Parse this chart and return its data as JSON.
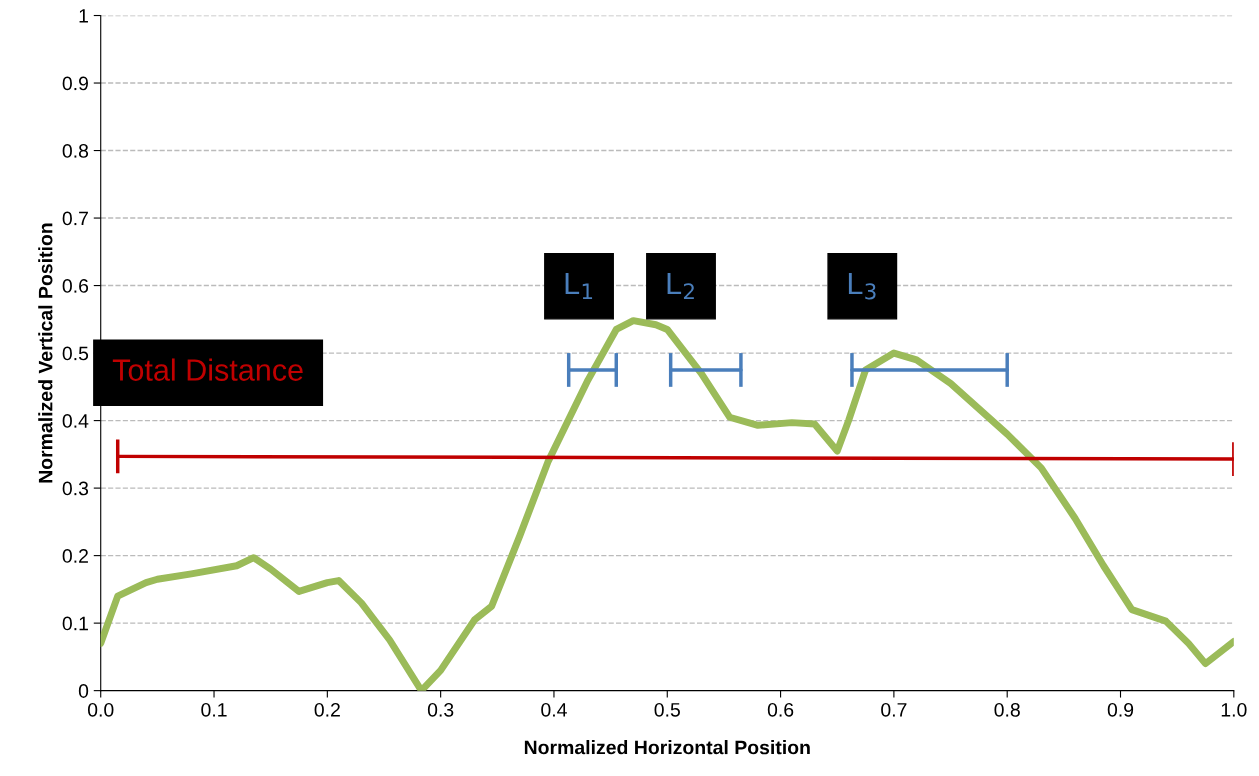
{
  "chart_data": {
    "type": "line",
    "xlabel": "Normalized Horizontal Position",
    "ylabel": "Normalized Vertical Position",
    "xlim": [
      0,
      1
    ],
    "ylim": [
      0,
      1
    ],
    "xticks": [
      {
        "value": 0,
        "label": "0.0"
      },
      {
        "value": 0.1,
        "label": "0.1"
      },
      {
        "value": 0.2,
        "label": "0.2"
      },
      {
        "value": 0.3,
        "label": "0.3"
      },
      {
        "value": 0.4,
        "label": "0.4"
      },
      {
        "value": 0.5,
        "label": "0.5"
      },
      {
        "value": 0.6,
        "label": "0.6"
      },
      {
        "value": 0.7,
        "label": "0.7"
      },
      {
        "value": 0.8,
        "label": "0.8"
      },
      {
        "value": 0.9,
        "label": "0.9"
      },
      {
        "value": 1,
        "label": "1.0"
      }
    ],
    "yticks": [
      0,
      0.1,
      0.2,
      0.3,
      0.4,
      0.5,
      0.6,
      0.7,
      0.8,
      0.9,
      1
    ],
    "grid": "y",
    "legend": false,
    "series": [
      {
        "color": "#9bbb59",
        "x": [
          0.0,
          0.015,
          0.04,
          0.05,
          0.08,
          0.12,
          0.135,
          0.15,
          0.175,
          0.2,
          0.21,
          0.23,
          0.255,
          0.283,
          0.3,
          0.33,
          0.345,
          0.37,
          0.395,
          0.43,
          0.455,
          0.47,
          0.49,
          0.5,
          0.53,
          0.555,
          0.58,
          0.61,
          0.63,
          0.64,
          0.65,
          0.66,
          0.675,
          0.7,
          0.72,
          0.75,
          0.8,
          0.83,
          0.86,
          0.885,
          0.91,
          0.94,
          0.96,
          0.975,
          1.0
        ],
        "values": [
          0.07,
          0.14,
          0.16,
          0.165,
          0.173,
          0.185,
          0.197,
          0.18,
          0.147,
          0.16,
          0.163,
          0.13,
          0.075,
          0.0,
          0.03,
          0.105,
          0.125,
          0.23,
          0.34,
          0.46,
          0.535,
          0.548,
          0.542,
          0.535,
          0.47,
          0.405,
          0.393,
          0.397,
          0.395,
          0.375,
          0.355,
          0.4,
          0.475,
          0.5,
          0.49,
          0.455,
          0.38,
          0.33,
          0.255,
          0.185,
          0.12,
          0.103,
          0.07,
          0.04,
          0.073
        ]
      },
      {
        "color": "#4a7ebb",
        "x": [
          0.413,
          0.455
        ],
        "values": [
          0.475,
          0.475
        ],
        "errors": [
          0.025,
          0.025
        ]
      },
      {
        "color": "#4a7ebb",
        "x": [
          0.503,
          0.565
        ],
        "values": [
          0.475,
          0.475
        ],
        "errors": [
          0.025,
          0.025
        ]
      },
      {
        "color": "#4a7ebb",
        "x": [
          0.663,
          0.8
        ],
        "values": [
          0.475,
          0.475
        ],
        "errors": [
          0.025,
          0.025
        ]
      },
      {
        "color": "#c00000",
        "x": [
          0.015,
          1.0
        ],
        "values": [
          0.347,
          0.343
        ],
        "errors": [
          0.025,
          0.025
        ]
      }
    ],
    "annotations": [
      {
        "text": "L$_{1}$",
        "x": 0.413,
        "y": 0.475
      },
      {
        "text": "L$_{2}$",
        "x": 0.503,
        "y": 0.475
      },
      {
        "text": "L$_{3}$",
        "x": 0.663,
        "y": 0.475
      },
      {
        "text": "Total Distance",
        "x": 0.015,
        "y": 0.347
      }
    ]
  }
}
